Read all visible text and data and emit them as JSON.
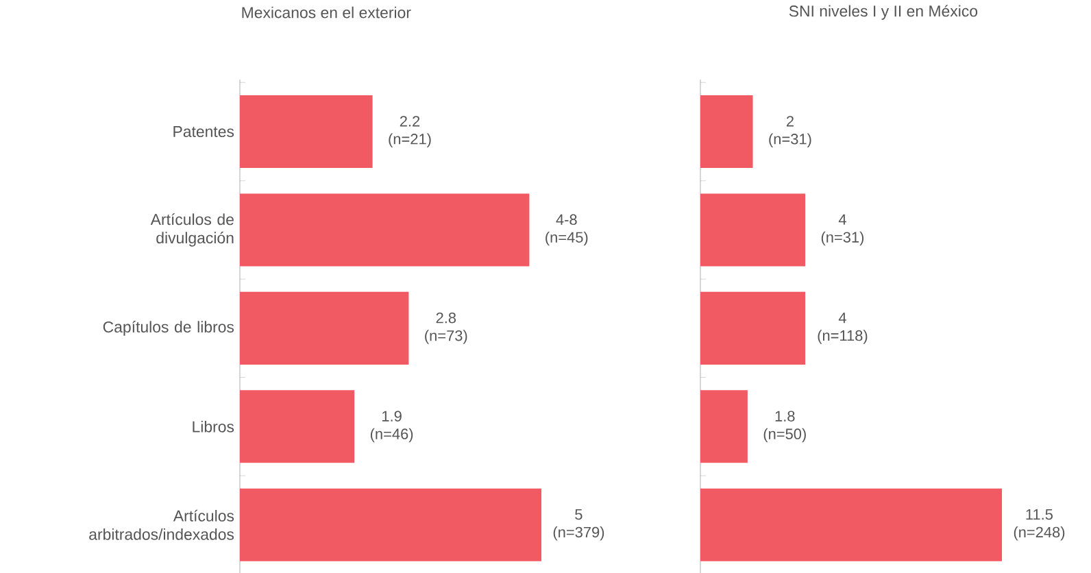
{
  "chart_data": [
    {
      "type": "bar",
      "orientation": "horizontal",
      "title": "Mexicanos en el exterior",
      "categories": [
        "Patentes",
        "Artículos de divulgación",
        "Capítulos de libros",
        "Libros",
        "Artículos arbitrados/indexados"
      ],
      "values": [
        2.2,
        4.8,
        2.8,
        1.9,
        5
      ],
      "color": "#f25a63",
      "value_labels": [
        "2.2 (n=21)",
        "4-8 (n=45)",
        "2.8 (n=73)",
        "1.9 (n=46)",
        "5 (n=379)"
      ],
      "tick_labels": "y"
    },
    {
      "type": "bar",
      "orientation": "horizontal",
      "title": "SNI niveles I y II en México",
      "values": [
        2,
        4,
        4,
        1.8,
        11.5
      ],
      "color": "#f25a63",
      "value_labels": [
        "2 (n=31)",
        "4 (n=31)",
        "4 (n=118)",
        "1.8 (n=50)",
        "11.5 (n=248)"
      ],
      "tick_labels": false
    }
  ]
}
